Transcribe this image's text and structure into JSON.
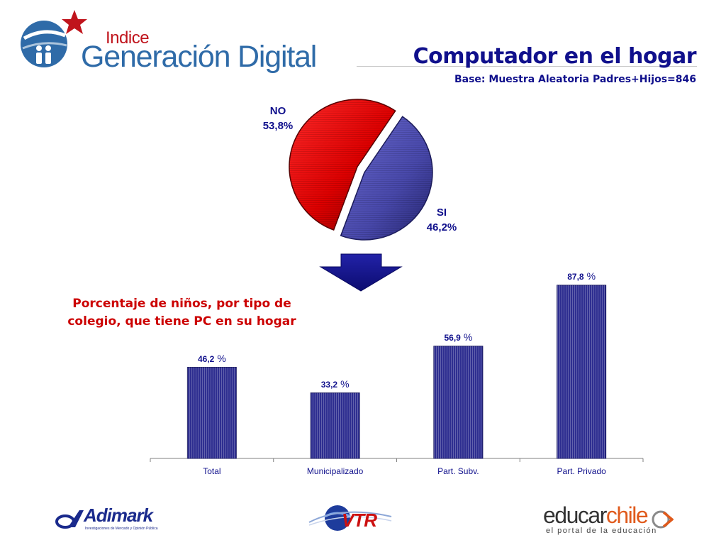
{
  "header": {
    "logo_small": "Indice",
    "logo_big": "Generación Digital",
    "title": "Computador en el hogar",
    "subtitle": "Base: Muestra Aleatoria Padres+Hijos=846"
  },
  "colors": {
    "title": "#10108c",
    "pie_no": "#cc0000",
    "pie_si": "#4a4aa8",
    "bars": "#2e2e90",
    "heading": "#cc0000",
    "arrow": "#14148c"
  },
  "bar_heading": "Porcentaje de niños, por tipo de colegio, que tiene PC en su hogar",
  "chart_data": [
    {
      "type": "pie",
      "labels": [
        "NO",
        "SI"
      ],
      "values": [
        53.8,
        46.2
      ],
      "value_labels": [
        "53,8%",
        "46,2%"
      ],
      "exploded": "SI"
    },
    {
      "type": "bar",
      "categories": [
        "Total",
        "Municipalizado",
        "Part. Subv.",
        "Part. Privado"
      ],
      "values": [
        46.2,
        33.2,
        56.9,
        87.8
      ],
      "value_labels": [
        "46,2",
        "33,2",
        "56,9",
        "87,8"
      ],
      "unit_label": "%",
      "ylim": [
        0,
        100
      ],
      "grid": false
    }
  ],
  "footer": {
    "logos": [
      "Adimark",
      "VTR",
      "educarchile"
    ],
    "adimark_tagline": "Investigaciones de Mercado y Opinión Pública",
    "educar_part1": "educar",
    "educar_part2": "chile",
    "educar_tagline": "el portal de la educación",
    "adimark_name": "Adimark",
    "vtr_name": "VTR"
  },
  "icons": [
    "star-icon",
    "globe-icon",
    "down-arrow-icon"
  ]
}
